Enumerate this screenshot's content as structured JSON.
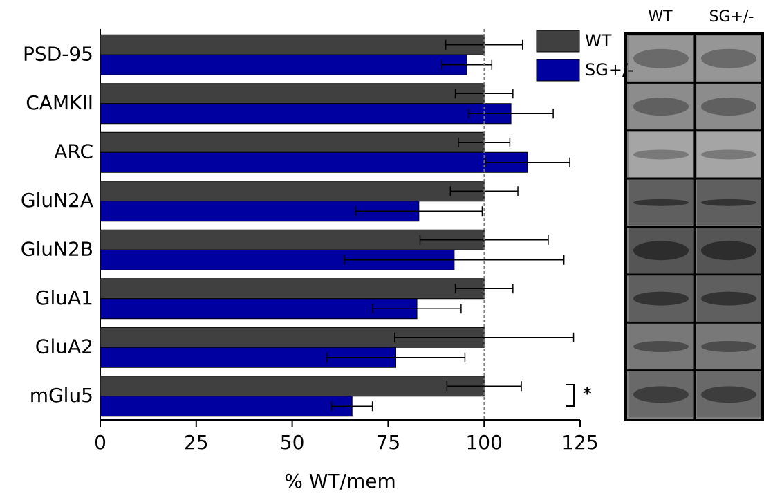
{
  "chart_data": {
    "type": "hbar",
    "xlabel": "% WT/mem",
    "categories": [
      "PSD-95",
      "CAMKII",
      "ARC",
      "GluN2A",
      "GluN2B",
      "GluA1",
      "GluA2",
      "mGlu5"
    ],
    "series": [
      {
        "name": "WT",
        "color": "#404040",
        "values": [
          100,
          100,
          100,
          100,
          100,
          100,
          100,
          100
        ],
        "errors": [
          10,
          7.5,
          6.7,
          8.8,
          16.7,
          7.5,
          23.3,
          9.7
        ]
      },
      {
        "name": "SG+/-",
        "color": "#0000a0",
        "values": [
          95.5,
          107,
          111.3,
          83,
          92.2,
          82.5,
          77,
          65.6
        ],
        "errors": [
          6.5,
          11,
          11,
          16.5,
          28.6,
          11.5,
          18,
          5.3
        ]
      }
    ],
    "xlim": [
      0,
      125
    ],
    "xticks": [
      0,
      25,
      50,
      75,
      100,
      125
    ],
    "reference_line": 100,
    "annotation": "*"
  },
  "blot": {
    "labels": [
      "WT",
      "SG+/-"
    ]
  }
}
